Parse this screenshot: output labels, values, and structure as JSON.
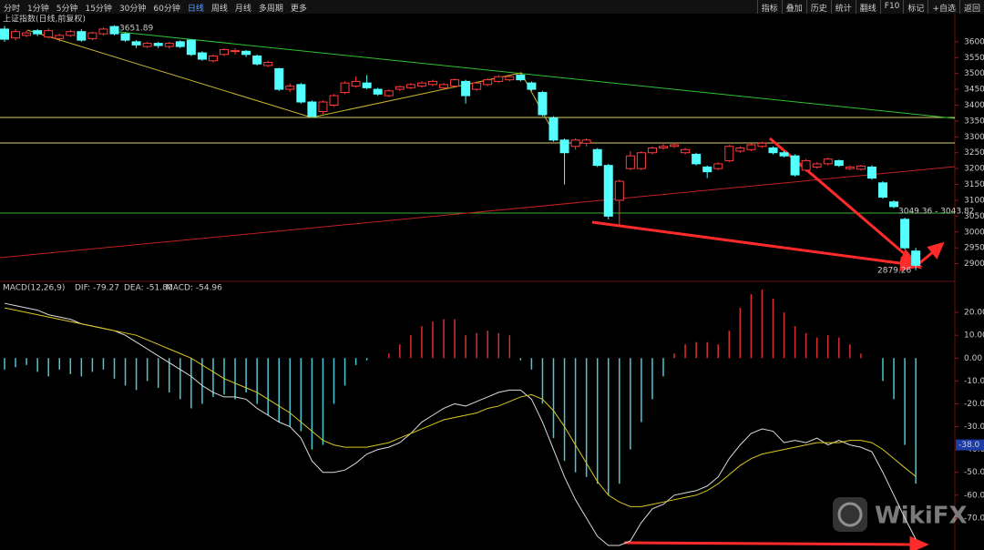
{
  "toolbar": {
    "left": [
      "分时",
      "1分钟",
      "5分钟",
      "15分钟",
      "30分钟",
      "60分钟",
      "日线",
      "周线",
      "月线",
      "多周期",
      "更多"
    ],
    "right": [
      "指标",
      "叠加",
      "历史",
      "统计",
      "翻线",
      "F10",
      "标记",
      "+自选",
      "返回"
    ]
  },
  "annotations": {
    "high": "3651.89",
    "range": "3049.36 - 3043.82",
    "low": "2879.26"
  },
  "watermark": "WikiFX",
  "chart_data": [
    {
      "type": "candlestick",
      "title": "上证指数(日线,前复权)",
      "up_color": "#ff3c3c",
      "down_color": "#54ffff",
      "open": [
        3640,
        3612,
        3620,
        3635,
        3615,
        3610,
        3620,
        3632,
        3610,
        3625,
        3648,
        3625,
        3600,
        3585,
        3595,
        3585,
        3600,
        3605,
        3565,
        3540,
        3560,
        3570,
        3570,
        3555,
        3525,
        3515,
        3450,
        3465,
        3410,
        3380,
        3400,
        3440,
        3460,
        3470,
        3450,
        3430,
        3450,
        3455,
        3460,
        3465,
        3455,
        3460,
        3475,
        3450,
        3465,
        3475,
        3480,
        3495,
        3470,
        3440,
        3360,
        3290,
        3270,
        3280,
        3260,
        3210,
        3100,
        3200,
        3200,
        3250,
        3265,
        3270,
        3250,
        3245,
        3205,
        3200,
        3225,
        3255,
        3260,
        3270,
        3265,
        3250,
        3240,
        3195,
        3205,
        3215,
        3225,
        3200,
        3198,
        3205,
        3155,
        3095,
        3040,
        2940
      ],
      "high": [
        3650,
        3640,
        3636,
        3640,
        3642,
        3626,
        3638,
        3640,
        3632,
        3645,
        3651.89,
        3630,
        3605,
        3600,
        3600,
        3600,
        3604,
        3608,
        3570,
        3560,
        3580,
        3580,
        3574,
        3560,
        3540,
        3518,
        3468,
        3470,
        3415,
        3415,
        3435,
        3475,
        3490,
        3495,
        3455,
        3450,
        3462,
        3470,
        3475,
        3480,
        3470,
        3485,
        3480,
        3475,
        3485,
        3495,
        3495,
        3498,
        3475,
        3445,
        3365,
        3295,
        3295,
        3295,
        3265,
        3215,
        3165,
        3255,
        3255,
        3270,
        3278,
        3282,
        3265,
        3250,
        3210,
        3220,
        3275,
        3270,
        3280,
        3285,
        3270,
        3255,
        3245,
        3230,
        3220,
        3235,
        3228,
        3210,
        3212,
        3210,
        3160,
        3100,
        3045,
        2950
      ],
      "low": [
        3600,
        3605,
        3615,
        3618,
        3610,
        3600,
        3615,
        3600,
        3605,
        3620,
        3620,
        3600,
        3580,
        3580,
        3580,
        3578,
        3580,
        3555,
        3540,
        3535,
        3555,
        3560,
        3552,
        3525,
        3520,
        3445,
        3442,
        3405,
        3360,
        3372,
        3395,
        3435,
        3455,
        3450,
        3430,
        3425,
        3445,
        3450,
        3455,
        3460,
        3450,
        3455,
        3405,
        3445,
        3460,
        3470,
        3475,
        3475,
        3445,
        3365,
        3285,
        3150,
        3260,
        3270,
        3205,
        3040,
        3020,
        3195,
        3195,
        3245,
        3260,
        3265,
        3245,
        3210,
        3170,
        3195,
        3220,
        3250,
        3255,
        3265,
        3245,
        3235,
        3175,
        3190,
        3200,
        3210,
        3205,
        3195,
        3194,
        3165,
        3105,
        3075,
        2945,
        2879.26
      ],
      "close": [
        3608,
        3632,
        3628,
        3625,
        3635,
        3620,
        3632,
        3605,
        3628,
        3640,
        3625,
        3605,
        3590,
        3595,
        3588,
        3595,
        3585,
        3560,
        3545,
        3555,
        3575,
        3572,
        3560,
        3530,
        3535,
        3450,
        3460,
        3410,
        3365,
        3410,
        3430,
        3470,
        3475,
        3455,
        3435,
        3445,
        3458,
        3465,
        3470,
        3475,
        3465,
        3480,
        3430,
        3470,
        3480,
        3490,
        3490,
        3480,
        3450,
        3370,
        3290,
        3250,
        3290,
        3290,
        3210,
        3050,
        3160,
        3240,
        3250,
        3265,
        3270,
        3275,
        3260,
        3215,
        3190,
        3215,
        3270,
        3265,
        3275,
        3280,
        3250,
        3240,
        3180,
        3225,
        3215,
        3230,
        3210,
        3205,
        3208,
        3170,
        3110,
        3080,
        2950,
        2895
      ],
      "ylim": [
        2850,
        3680
      ],
      "yticks": [
        3600,
        3550,
        3500,
        3450,
        3400,
        3350,
        3300,
        3250,
        3200,
        3150,
        3100,
        3050,
        3000,
        2950,
        2900
      ]
    },
    {
      "type": "macd",
      "title": "MACD(12,26,9)",
      "legend": [
        "DIF: -79.27",
        "DEA: -51.80",
        "MACD: -54.96"
      ],
      "up_color": "#d83030",
      "down_color": "#4cc8d4",
      "histogram": [
        -5,
        -4,
        -3,
        -6,
        -8,
        -5,
        -7,
        -8,
        -6,
        -5,
        -9,
        -12,
        -14,
        -10,
        -13,
        -15,
        -18,
        -22,
        -20,
        -17,
        -16,
        -18,
        -15,
        -20,
        -25,
        -28,
        -30,
        -32,
        -40,
        -38,
        -20,
        -12,
        -3,
        -1,
        0,
        2,
        6,
        10,
        14,
        16,
        17,
        17,
        10,
        11,
        12,
        11,
        10,
        -1,
        -5,
        -20,
        -35,
        -45,
        -50,
        -52,
        -55,
        -60,
        -55,
        -40,
        -28,
        -18,
        -8,
        2,
        6,
        7,
        7,
        6,
        12,
        22,
        28,
        30,
        26,
        20,
        14,
        11,
        9,
        10,
        9,
        6,
        2,
        0,
        -10,
        -18,
        -38,
        -54.96
      ],
      "series": [
        {
          "name": "DIF",
          "color": "#dcdcdc",
          "values": [
            24,
            23,
            22,
            21,
            19,
            18,
            17,
            15,
            14,
            13,
            12,
            10,
            7,
            4,
            1,
            -2,
            -5,
            -8,
            -12,
            -15,
            -17,
            -17,
            -18,
            -22,
            -25,
            -28,
            -30,
            -35,
            -45,
            -50,
            -50,
            -49,
            -46,
            -42,
            -40,
            -39,
            -37,
            -33,
            -28,
            -25,
            -22,
            -20,
            -21,
            -19,
            -17,
            -15,
            -14,
            -14,
            -18,
            -28,
            -40,
            -52,
            -62,
            -70,
            -78,
            -82,
            -82,
            -80,
            -72,
            -66,
            -64,
            -60,
            -59,
            -58,
            -56,
            -52,
            -44,
            -38,
            -33,
            -31,
            -32,
            -37,
            -36,
            -37,
            -35,
            -38,
            -36,
            -38,
            -39,
            -41,
            -50,
            -60,
            -70,
            -79.27
          ]
        },
        {
          "name": "DEA",
          "color": "#d8c820",
          "values": [
            22,
            21,
            20,
            19,
            18,
            17,
            16,
            15,
            14,
            13,
            12,
            11,
            10,
            8,
            6,
            4,
            2,
            0,
            -3,
            -6,
            -9,
            -11,
            -13,
            -15,
            -18,
            -21,
            -24,
            -28,
            -32,
            -36,
            -38,
            -39,
            -39,
            -39,
            -38,
            -37,
            -35,
            -33,
            -31,
            -29,
            -27,
            -26,
            -25,
            -24,
            -22,
            -21,
            -19,
            -17,
            -16,
            -18,
            -23,
            -30,
            -38,
            -46,
            -54,
            -60,
            -63,
            -65,
            -65,
            -64,
            -63,
            -62,
            -61,
            -60,
            -58,
            -55,
            -51,
            -47,
            -44,
            -42,
            -41,
            -40,
            -39,
            -38,
            -37,
            -37,
            -37,
            -36,
            -36,
            -37,
            -40,
            -44,
            -48,
            -51.8
          ]
        }
      ],
      "marker": {
        "value": -38,
        "label": "-38.0"
      },
      "ylim": [
        -84,
        32
      ],
      "yticks": [
        {
          "value": 20,
          "label": "20.00"
        },
        {
          "value": 10,
          "label": "10.00"
        },
        {
          "value": 0,
          "label": "0.00"
        },
        {
          "value": -10,
          "label": "-10.00"
        },
        {
          "value": -20,
          "label": "-20.00"
        },
        {
          "value": -30,
          "label": "-30.00"
        },
        {
          "value": -40,
          "label": "-40.00"
        },
        {
          "value": -50,
          "label": "-50.00"
        },
        {
          "value": -60,
          "label": "-60.00"
        },
        {
          "value": -70,
          "label": "-70.00"
        }
      ]
    }
  ]
}
